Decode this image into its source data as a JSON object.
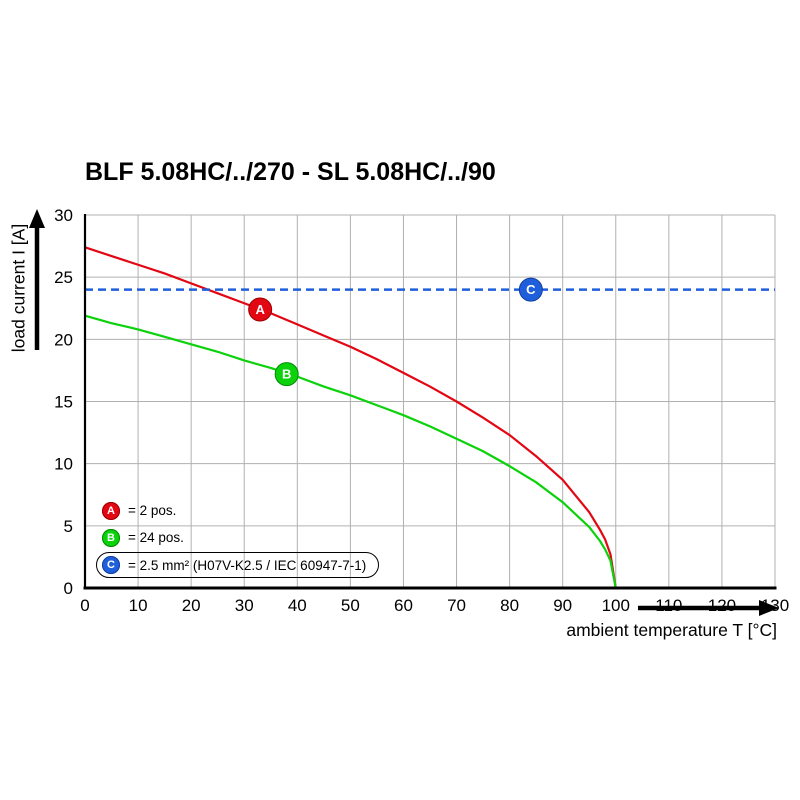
{
  "chart_data": {
    "type": "line",
    "title": "BLF 5.08HC/../270 - SL 5.08HC/../90",
    "xlabel": "ambient temperature T [°C]",
    "ylabel": "load current I [A]",
    "xlim": [
      0,
      130
    ],
    "ylim": [
      0,
      30
    ],
    "x_ticks": [
      0,
      10,
      20,
      30,
      40,
      50,
      60,
      70,
      80,
      90,
      100,
      110,
      120,
      130
    ],
    "y_ticks": [
      0,
      5,
      10,
      15,
      20,
      25,
      30
    ],
    "grid": true,
    "grid_color": "#b0b0b0",
    "legend_position": "lower-left",
    "series": [
      {
        "name": "A",
        "label": "= 2 pos.",
        "color": "#e30613",
        "edge_color": "#9b0000",
        "style": "solid",
        "x": [
          0,
          5,
          10,
          15,
          20,
          25,
          30,
          35,
          40,
          45,
          50,
          55,
          60,
          65,
          70,
          75,
          80,
          85,
          90,
          95,
          97,
          98,
          99,
          100
        ],
        "y": [
          27.4,
          26.7,
          26.0,
          25.3,
          24.5,
          23.7,
          22.9,
          22.1,
          21.2,
          20.3,
          19.4,
          18.4,
          17.3,
          16.2,
          15.0,
          13.7,
          12.3,
          10.6,
          8.7,
          6.1,
          4.7,
          3.9,
          2.7,
          0
        ],
        "marker_at": {
          "x": 33,
          "y": 22.4
        }
      },
      {
        "name": "B",
        "label": "= 24 pos.",
        "color": "#0bd20b",
        "edge_color": "#008a00",
        "style": "solid",
        "x": [
          0,
          5,
          10,
          15,
          20,
          25,
          30,
          35,
          40,
          45,
          50,
          55,
          60,
          65,
          70,
          75,
          80,
          85,
          90,
          95,
          97,
          98,
          99,
          100
        ],
        "y": [
          21.9,
          21.3,
          20.8,
          20.2,
          19.6,
          19.0,
          18.3,
          17.7,
          17.0,
          16.2,
          15.5,
          14.7,
          13.9,
          13.0,
          12.0,
          11.0,
          9.8,
          8.5,
          6.9,
          4.9,
          3.8,
          3.1,
          2.2,
          0
        ],
        "marker_at": {
          "x": 38,
          "y": 17.2
        }
      },
      {
        "name": "C",
        "label": "= 2.5 mm² (H07V-K2.5 / IEC 60947-7-1)",
        "color": "#1f5fdb",
        "edge_color": "#123f9e",
        "style": "dashed",
        "y_const": 24,
        "marker_at": {
          "x": 84,
          "y": 24
        }
      }
    ]
  }
}
